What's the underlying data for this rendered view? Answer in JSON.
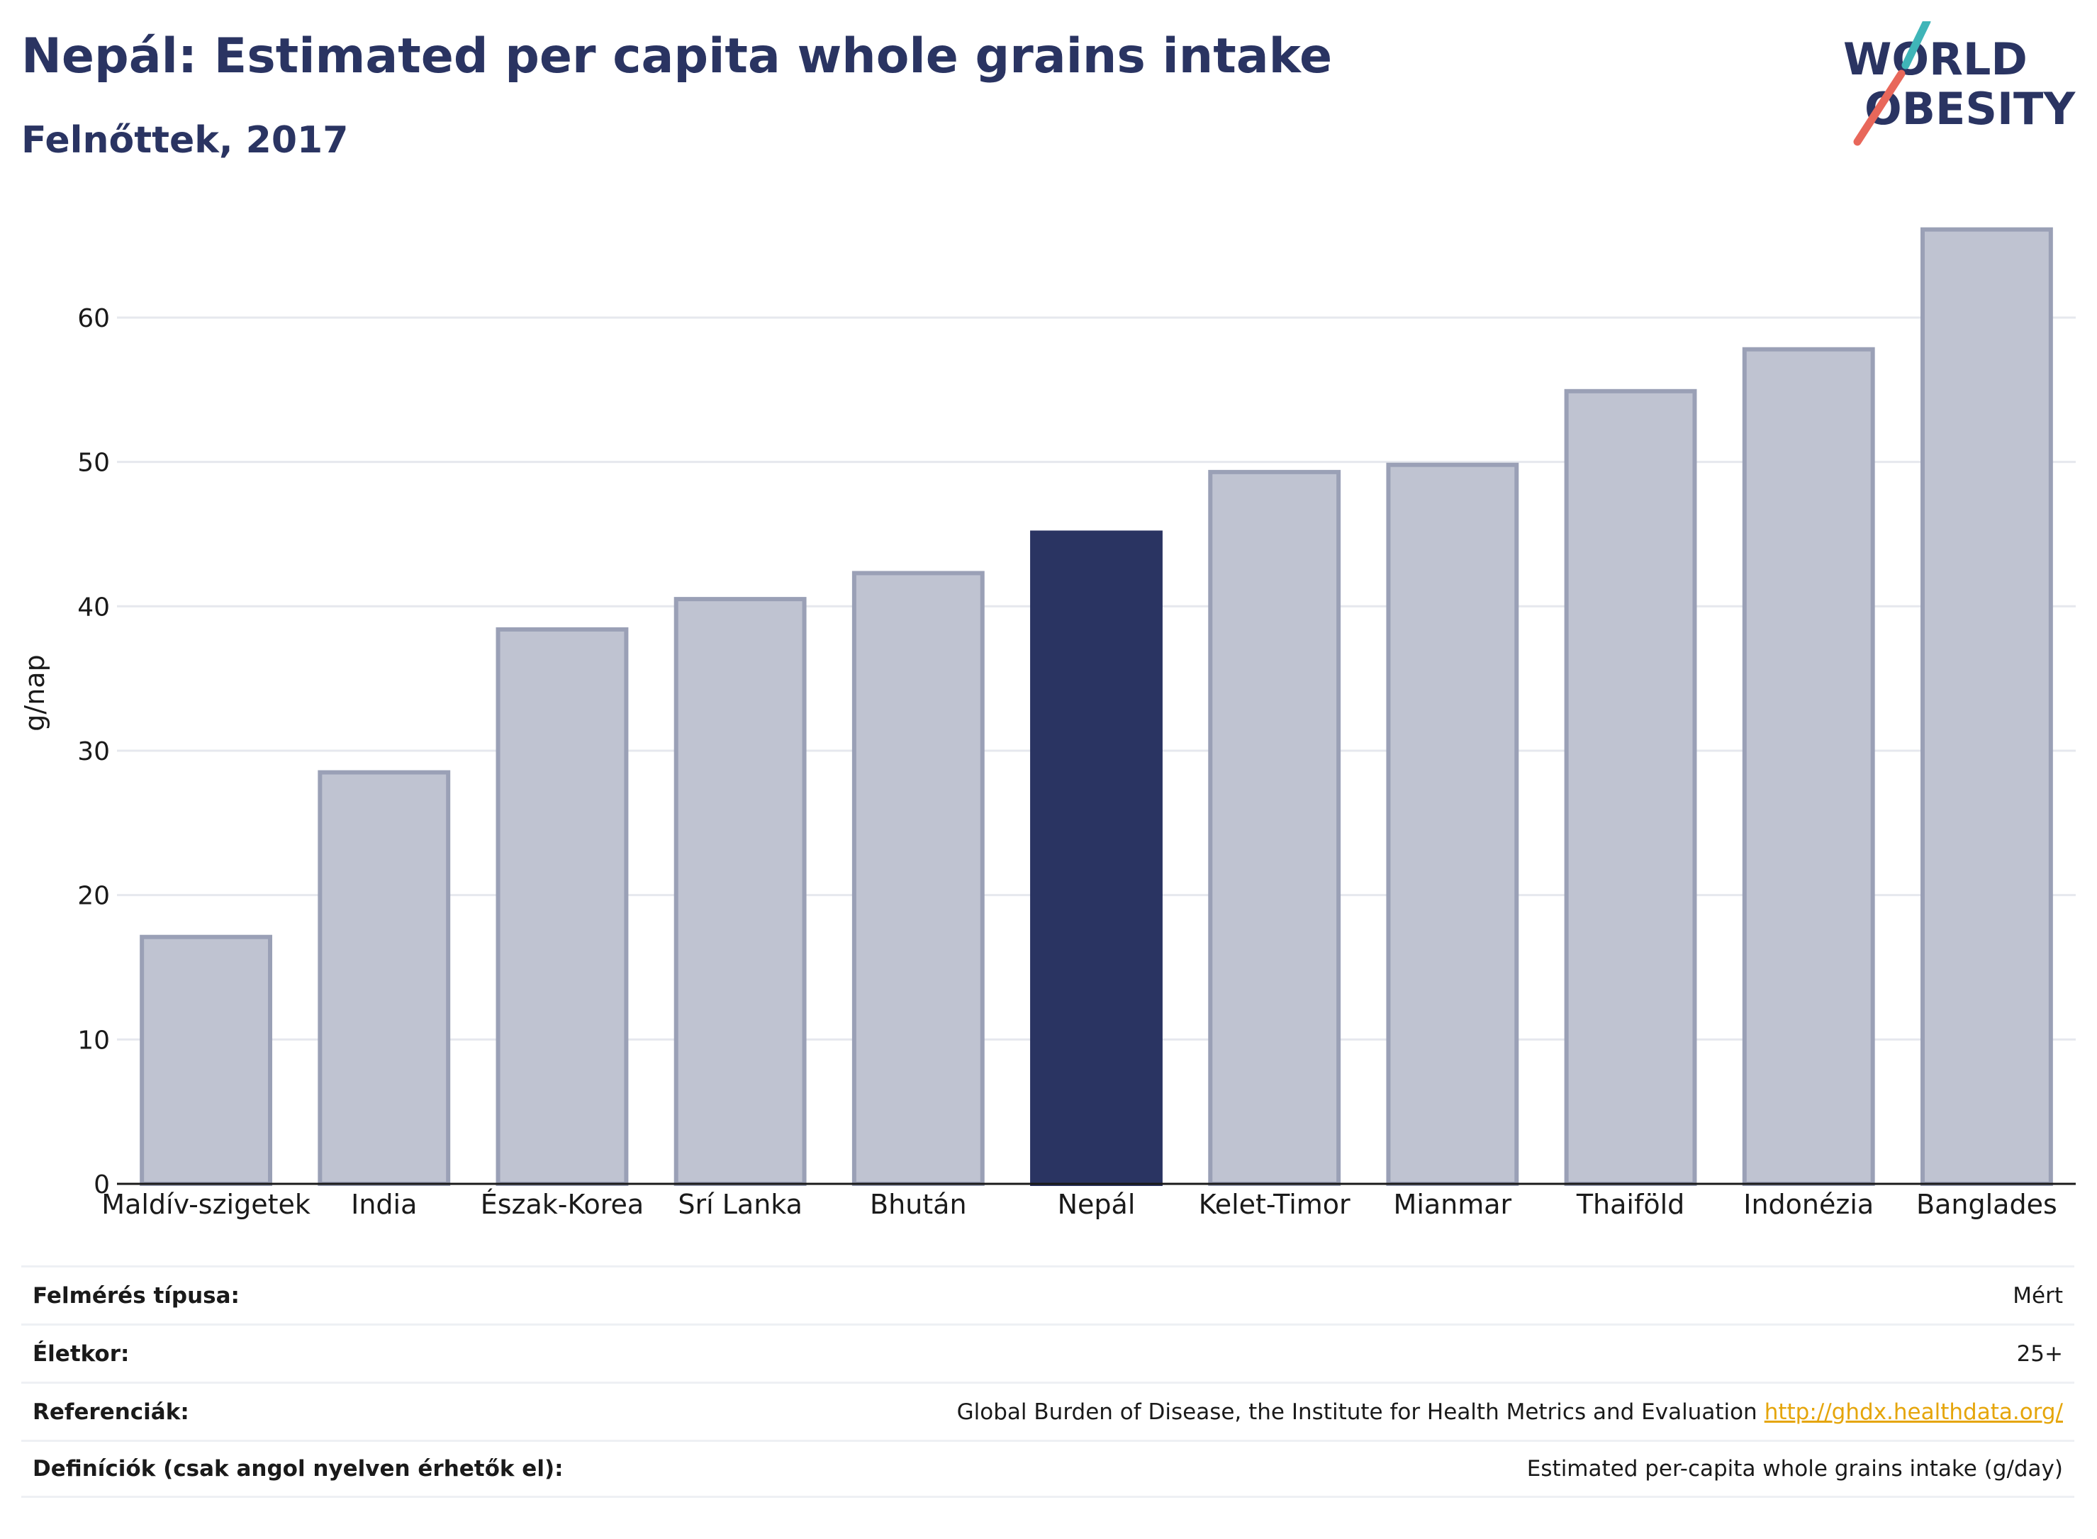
{
  "title": "Nepál: Estimated per capita whole grains intake",
  "subtitle": "Felnőttek, 2017",
  "logo": {
    "line1": "WORLD",
    "line2": "OBESITY"
  },
  "chart_data": {
    "type": "bar",
    "ylabel": "g/nap",
    "ylim": [
      0,
      68
    ],
    "yticks": [
      0,
      10,
      20,
      30,
      40,
      50,
      60
    ],
    "grid": true,
    "categories": [
      "Maldív-szigetek",
      "India",
      "Észak-Korea",
      "Srí Lanka",
      "Bhután",
      "Nepál",
      "Kelet-Timor",
      "Mianmar",
      "Thaiföld",
      "Indonézia",
      "Banglades"
    ],
    "values": [
      17.1,
      28.5,
      38.4,
      40.5,
      42.3,
      45.1,
      49.3,
      49.8,
      54.9,
      57.8,
      66.1
    ],
    "highlight": "Nepál",
    "colors": {
      "highlight": "#2a3462",
      "other_fill": "#bfc3d1",
      "other_stroke": "#9aa0b6"
    }
  },
  "info": [
    {
      "label": "Felmérés típusa:",
      "value": "Mért"
    },
    {
      "label": "Életkor:",
      "value": "25+"
    },
    {
      "label": "Referenciák:",
      "value": "Global Burden of Disease, the Institute for Health Metrics and Evaluation",
      "link": "http://ghdx.healthdata.org/"
    },
    {
      "label": "Definíciók (csak angol nyelven érhetők el):",
      "value": "Estimated per-capita whole grains intake (g/day)"
    }
  ]
}
